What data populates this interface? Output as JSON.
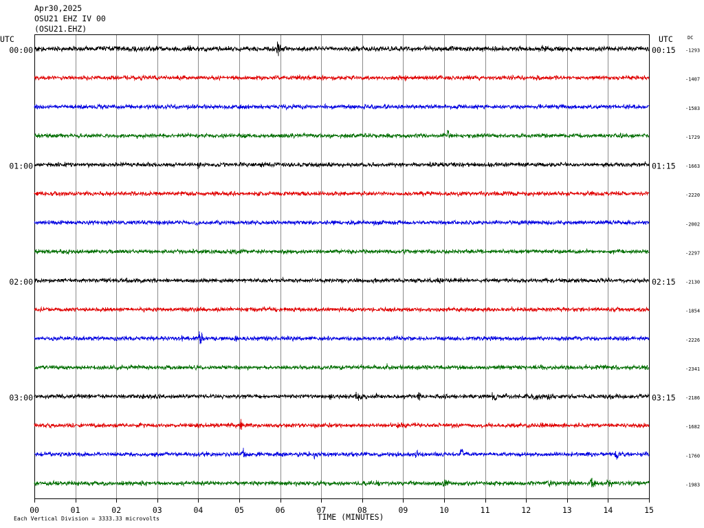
{
  "chart_data": {
    "type": "line",
    "title_lines": [
      "Apr30,2025",
      "OSU21 EHZ IV 00",
      "(OSU21.EHZ)"
    ],
    "left_axis_label": "UTC",
    "right_axis_label": "UTC",
    "dc_header": "DC",
    "xlabel": "TIME (MINUTES)",
    "x_ticks": [
      "00",
      "01",
      "02",
      "03",
      "04",
      "05",
      "06",
      "07",
      "08",
      "09",
      "10",
      "11",
      "12",
      "13",
      "14",
      "15"
    ],
    "xlim": [
      0,
      15
    ],
    "grid": true,
    "scale_note": "Each Vertical Division = 3333.33 microvolts",
    "vertical_division_uv": 3333.33,
    "series": [
      {
        "left_label": "00:00",
        "right_label": "00:15",
        "dc": -1293,
        "color": "#000000",
        "noise_uv": 300,
        "events": [
          {
            "t": 3.7,
            "amp_uv": 400
          },
          {
            "t": 5.92,
            "amp_uv": 1000
          },
          {
            "t": 12.4,
            "amp_uv": 400
          }
        ]
      },
      {
        "dc": -1407,
        "color": "#e00000",
        "noise_uv": 250,
        "events": []
      },
      {
        "dc": -1583,
        "color": "#0000e0",
        "noise_uv": 250,
        "events": []
      },
      {
        "dc": -1729,
        "color": "#006e00",
        "noise_uv": 250,
        "events": [
          {
            "t": 10.08,
            "amp_uv": 800
          },
          {
            "t": 14.3,
            "amp_uv": 350
          }
        ]
      },
      {
        "left_label": "01:00",
        "right_label": "01:15",
        "dc": -1663,
        "color": "#000000",
        "noise_uv": 250,
        "events": [
          {
            "t": 4.0,
            "amp_uv": 450
          },
          {
            "t": 9.8,
            "amp_uv": 350
          }
        ]
      },
      {
        "dc": -2220,
        "color": "#e00000",
        "noise_uv": 250,
        "events": [
          {
            "t": 14.35,
            "amp_uv": 350
          }
        ]
      },
      {
        "dc": -2002,
        "color": "#0000e0",
        "noise_uv": 250,
        "events": []
      },
      {
        "dc": -2297,
        "color": "#006e00",
        "noise_uv": 250,
        "events": []
      },
      {
        "left_label": "02:00",
        "right_label": "02:15",
        "dc": -2130,
        "color": "#000000",
        "noise_uv": 250,
        "events": [
          {
            "t": 8.27,
            "amp_uv": 350
          },
          {
            "t": 9.8,
            "amp_uv": 300
          }
        ]
      },
      {
        "dc": -1854,
        "color": "#e00000",
        "noise_uv": 250,
        "events": []
      },
      {
        "dc": -2226,
        "color": "#0000e0",
        "noise_uv": 250,
        "events": [
          {
            "t": 3.6,
            "amp_uv": 450
          },
          {
            "t": 4.03,
            "amp_uv": 900
          },
          {
            "t": 4.9,
            "amp_uv": 350
          }
        ]
      },
      {
        "dc": -2341,
        "color": "#006e00",
        "noise_uv": 250,
        "events": [
          {
            "t": 8.6,
            "amp_uv": 400
          }
        ]
      },
      {
        "left_label": "03:00",
        "right_label": "03:15",
        "dc": -2186,
        "color": "#000000",
        "noise_uv": 250,
        "events": [
          {
            "t": 7.2,
            "amp_uv": 450
          },
          {
            "t": 7.85,
            "amp_uv": 650
          },
          {
            "t": 9.35,
            "amp_uv": 800
          },
          {
            "t": 11.18,
            "amp_uv": 950
          },
          {
            "t": 12.2,
            "amp_uv": 450
          },
          {
            "t": 12.53,
            "amp_uv": 650
          }
        ]
      },
      {
        "dc": -1682,
        "color": "#e00000",
        "noise_uv": 250,
        "events": [
          {
            "t": 2.6,
            "amp_uv": 350
          },
          {
            "t": 5.03,
            "amp_uv": 800
          },
          {
            "t": 8.86,
            "amp_uv": 650
          }
        ]
      },
      {
        "dc": -1760,
        "color": "#0000e0",
        "noise_uv": 250,
        "events": [
          {
            "t": 5.07,
            "amp_uv": 850
          },
          {
            "t": 6.83,
            "amp_uv": 600
          },
          {
            "t": 9.3,
            "amp_uv": 350
          },
          {
            "t": 10.4,
            "amp_uv": 700
          },
          {
            "t": 13.5,
            "amp_uv": 550
          },
          {
            "t": 14.18,
            "amp_uv": 700
          }
        ]
      },
      {
        "dc": -1983,
        "color": "#006e00",
        "noise_uv": 250,
        "events": [
          {
            "t": 8.35,
            "amp_uv": 450
          },
          {
            "t": 9.98,
            "amp_uv": 750
          },
          {
            "t": 12.55,
            "amp_uv": 650
          },
          {
            "t": 13.05,
            "amp_uv": 500
          },
          {
            "t": 13.58,
            "amp_uv": 800
          },
          {
            "t": 13.97,
            "amp_uv": 700
          }
        ]
      }
    ]
  }
}
